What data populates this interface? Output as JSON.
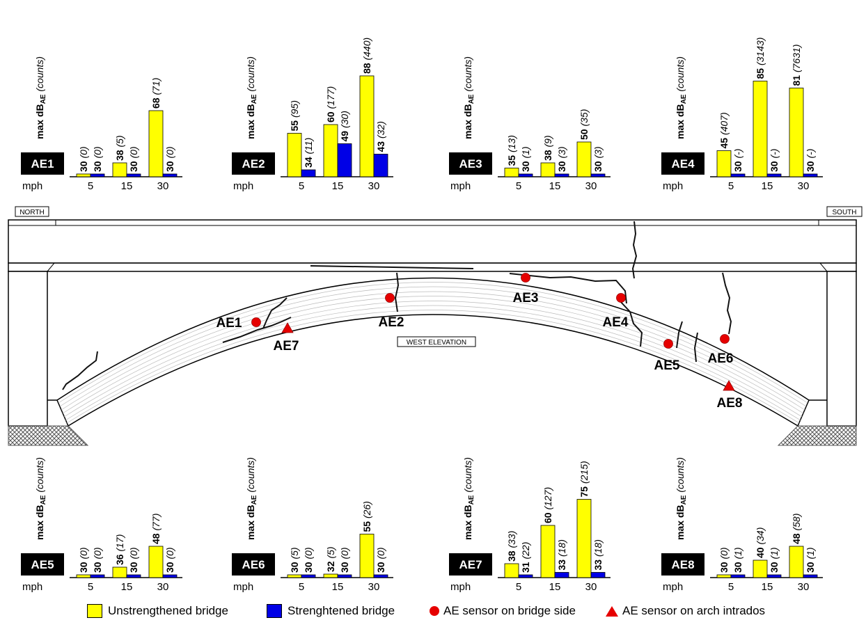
{
  "colors": {
    "unstrengthened": "#ffff00",
    "strengthened": "#0000e6",
    "sensor": "#e60000",
    "label_bg": "#000000"
  },
  "bridge": {
    "north_label": "NORTH",
    "south_label": "SOUTH",
    "elevation_label": "WEST ELEVATION",
    "sensors": [
      {
        "id": "AE1",
        "shape": "circle"
      },
      {
        "id": "AE2",
        "shape": "circle"
      },
      {
        "id": "AE3",
        "shape": "circle"
      },
      {
        "id": "AE4",
        "shape": "circle"
      },
      {
        "id": "AE5",
        "shape": "circle"
      },
      {
        "id": "AE6",
        "shape": "circle"
      },
      {
        "id": "AE7",
        "shape": "triangle"
      },
      {
        "id": "AE8",
        "shape": "triangle"
      }
    ]
  },
  "legend": {
    "unstrengthened": "Unstrengthened bridge",
    "strengthened": "Strenghtened bridge",
    "side_sensor": "AE sensor on bridge side",
    "intrados_sensor": "AE sensor on arch intrados",
    "side_sensor_icon": "red-circle",
    "intrados_sensor_icon": "red-triangle"
  },
  "chart_data": [
    {
      "type": "bar",
      "title": "AE1",
      "ylabel": "max dB_AE (counts)",
      "xlabel": "mph",
      "categories": [
        "5",
        "15",
        "30"
      ],
      "ylim": [
        30,
        90
      ],
      "series": [
        {
          "name": "Unstrengthened bridge",
          "values": [
            30,
            38,
            68
          ],
          "counts": [
            "(0)",
            "(5)",
            "(71)"
          ]
        },
        {
          "name": "Strenghtened bridge",
          "values": [
            30,
            30,
            30
          ],
          "counts": [
            "(0)",
            "(0)",
            "(0)"
          ]
        }
      ]
    },
    {
      "type": "bar",
      "title": "AE2",
      "ylabel": "max dB_AE (counts)",
      "xlabel": "mph",
      "categories": [
        "5",
        "15",
        "30"
      ],
      "ylim": [
        30,
        90
      ],
      "series": [
        {
          "name": "Unstrengthened bridge",
          "values": [
            55,
            60,
            88
          ],
          "counts": [
            "(95)",
            "(177)",
            "(440)"
          ]
        },
        {
          "name": "Strenghtened bridge",
          "values": [
            34,
            49,
            43
          ],
          "counts": [
            "(11)",
            "(30)",
            "(32)"
          ]
        }
      ]
    },
    {
      "type": "bar",
      "title": "AE3",
      "ylabel": "max dB_AE (counts)",
      "xlabel": "mph",
      "categories": [
        "5",
        "15",
        "30"
      ],
      "ylim": [
        30,
        90
      ],
      "series": [
        {
          "name": "Unstrengthened bridge",
          "values": [
            35,
            38,
            50
          ],
          "counts": [
            "(13)",
            "(9)",
            "(35)"
          ]
        },
        {
          "name": "Strenghtened bridge",
          "values": [
            30,
            30,
            30
          ],
          "counts": [
            "(1)",
            "(3)",
            "(3)"
          ]
        }
      ]
    },
    {
      "type": "bar",
      "title": "AE4",
      "ylabel": "max dB_AE (counts)",
      "xlabel": "mph",
      "categories": [
        "5",
        "15",
        "30"
      ],
      "ylim": [
        30,
        90
      ],
      "series": [
        {
          "name": "Unstrengthened bridge",
          "values": [
            45,
            85,
            81
          ],
          "counts": [
            "(407)",
            "(3143)",
            "(7631)"
          ]
        },
        {
          "name": "Strenghtened bridge",
          "values": [
            30,
            30,
            30
          ],
          "counts": [
            "(-)",
            "(-)",
            "(-)"
          ]
        }
      ]
    },
    {
      "type": "bar",
      "title": "AE5",
      "ylabel": "max dB_AE (counts)",
      "xlabel": "mph",
      "categories": [
        "5",
        "15",
        "30"
      ],
      "ylim": [
        30,
        90
      ],
      "series": [
        {
          "name": "Unstrengthened bridge",
          "values": [
            30,
            36,
            48
          ],
          "counts": [
            "(0)",
            "(17)",
            "(77)"
          ]
        },
        {
          "name": "Strenghtened bridge",
          "values": [
            30,
            30,
            30
          ],
          "counts": [
            "(0)",
            "(0)",
            "(0)"
          ]
        }
      ]
    },
    {
      "type": "bar",
      "title": "AE6",
      "ylabel": "max dB_AE (counts)",
      "xlabel": "mph",
      "categories": [
        "5",
        "15",
        "30"
      ],
      "ylim": [
        30,
        90
      ],
      "series": [
        {
          "name": "Unstrengthened bridge",
          "values": [
            30,
            32,
            55
          ],
          "counts": [
            "(5)",
            "(5)",
            "(26)"
          ]
        },
        {
          "name": "Strenghtened bridge",
          "values": [
            30,
            30,
            30
          ],
          "counts": [
            "(0)",
            "(0)",
            "(0)"
          ]
        }
      ]
    },
    {
      "type": "bar",
      "title": "AE7",
      "ylabel": "max dB_AE (counts)",
      "xlabel": "mph",
      "categories": [
        "5",
        "15",
        "30"
      ],
      "ylim": [
        30,
        90
      ],
      "series": [
        {
          "name": "Unstrengthened bridge",
          "values": [
            38,
            60,
            75
          ],
          "counts": [
            "(33)",
            "(127)",
            "(215)"
          ]
        },
        {
          "name": "Strenghtened bridge",
          "values": [
            31,
            33,
            33
          ],
          "counts": [
            "(22)",
            "(18)",
            "(18)"
          ]
        }
      ]
    },
    {
      "type": "bar",
      "title": "AE8",
      "ylabel": "max dB_AE (counts)",
      "xlabel": "mph",
      "categories": [
        "5",
        "15",
        "30"
      ],
      "ylim": [
        30,
        90
      ],
      "series": [
        {
          "name": "Unstrengthened bridge",
          "values": [
            30,
            40,
            48
          ],
          "counts": [
            "(0)",
            "(34)",
            "(58)"
          ]
        },
        {
          "name": "Strenghtened bridge",
          "values": [
            30,
            30,
            30
          ],
          "counts": [
            "(1)",
            "(1)",
            "(1)"
          ]
        }
      ]
    }
  ]
}
